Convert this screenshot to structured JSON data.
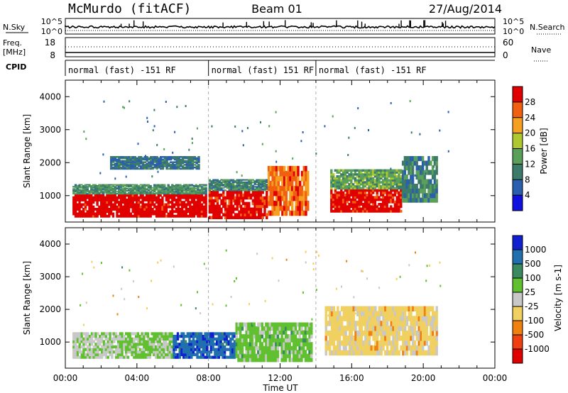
{
  "header": {
    "station": "McMurdo (fitACF)",
    "beam": "Beam 01",
    "date": "27/Aug/2014"
  },
  "top_panels": {
    "nsky_label": "N.Sky",
    "nsky_ticks": [
      "10^5",
      "10^0"
    ],
    "nsearch_label": "N.Search",
    "nsearch_ticks": [
      "10^5",
      "10^0"
    ],
    "freq_label": "Freq.",
    "freq_unit": "[MHz]",
    "freq_ticks": [
      "18",
      "8"
    ],
    "nave_label": "Nave",
    "nave_ticks": [
      "60",
      "0"
    ],
    "cpid_label": "CPID",
    "cpid_segments": [
      {
        "label": "normal (fast) -151 RF",
        "start_h": 0,
        "end_h": 8
      },
      {
        "label": "normal (fast) 151 RF",
        "start_h": 8,
        "end_h": 14
      },
      {
        "label": "normal (fast) -151 RF",
        "start_h": 14,
        "end_h": 24
      }
    ]
  },
  "axes": {
    "ylabel": "Slant Range [km]",
    "xlabel": "Time UT",
    "y_ticks": [
      "1000",
      "2000",
      "3000",
      "4000"
    ],
    "x_ticks": [
      "00:00",
      "04:00",
      "08:00",
      "12:00",
      "16:00",
      "20:00",
      "00:00"
    ]
  },
  "colorbars": {
    "power": {
      "label": "Power [dB]",
      "ticks": [
        "4",
        "8",
        "12",
        "16",
        "20",
        "24",
        "28"
      ],
      "colors": [
        "#1010e0",
        "#2a5fb0",
        "#3c7a6a",
        "#5aa05a",
        "#b0c830",
        "#f5a020",
        "#f06010",
        "#e00000"
      ]
    },
    "velocity": {
      "label": "Velocity [m s-1]",
      "ticks": [
        "1000",
        "500",
        "100",
        "25",
        "-25",
        "-100",
        "-500",
        "-1000"
      ],
      "colors": [
        "#1020d0",
        "#2070b0",
        "#3a8a60",
        "#60c030",
        "#c8c8c8",
        "#f0d060",
        "#f08010",
        "#f04010",
        "#e00000"
      ]
    }
  },
  "chart_data": {
    "type": "heatmap",
    "title": "McMurdo (fitACF) Beam 01 27/Aug/2014",
    "x_unit": "hours UT",
    "xlim": [
      0,
      24
    ],
    "ylim": [
      200,
      4500
    ],
    "xlabel": "Time UT",
    "ylabel": "Slant Range [km]",
    "panels": [
      {
        "name": "Power [dB]",
        "clim": [
          0,
          30
        ],
        "regions": [
          {
            "t0": 0.4,
            "t1": 7.9,
            "r0": 350,
            "r1": 1050,
            "value": 30
          },
          {
            "t0": 0.4,
            "t1": 7.9,
            "r0": 1050,
            "r1": 1350,
            "value": 11
          },
          {
            "t0": 8.0,
            "t1": 11.3,
            "r0": 300,
            "r1": 1150,
            "value": 29
          },
          {
            "t0": 8.0,
            "t1": 11.3,
            "r0": 1150,
            "r1": 1500,
            "value": 10
          },
          {
            "t0": 11.3,
            "t1": 13.6,
            "r0": 400,
            "r1": 1900,
            "value": 24
          },
          {
            "t0": 14.8,
            "t1": 18.8,
            "r0": 500,
            "r1": 1200,
            "value": 29
          },
          {
            "t0": 14.8,
            "t1": 18.8,
            "r0": 1200,
            "r1": 1800,
            "value": 13
          },
          {
            "t0": 18.8,
            "t1": 20.8,
            "r0": 800,
            "r1": 2200,
            "value": 10
          },
          {
            "t0": 2.5,
            "t1": 7.5,
            "r0": 1800,
            "r1": 2200,
            "value": 8
          }
        ]
      },
      {
        "name": "Velocity [m s-1]",
        "clim": [
          -1000,
          1000
        ],
        "regions": [
          {
            "t0": 0.4,
            "t1": 3.0,
            "r0": 500,
            "r1": 1300,
            "value": 60
          },
          {
            "t0": 3.0,
            "t1": 6.0,
            "r0": 500,
            "r1": 1300,
            "value": 150
          },
          {
            "t0": 6.0,
            "t1": 9.5,
            "r0": 500,
            "r1": 1300,
            "value": 700
          },
          {
            "t0": 9.5,
            "t1": 13.8,
            "r0": 400,
            "r1": 1600,
            "value": 200
          },
          {
            "t0": 14.5,
            "t1": 20.8,
            "r0": 600,
            "r1": 2100,
            "value": -200
          }
        ]
      }
    ]
  }
}
